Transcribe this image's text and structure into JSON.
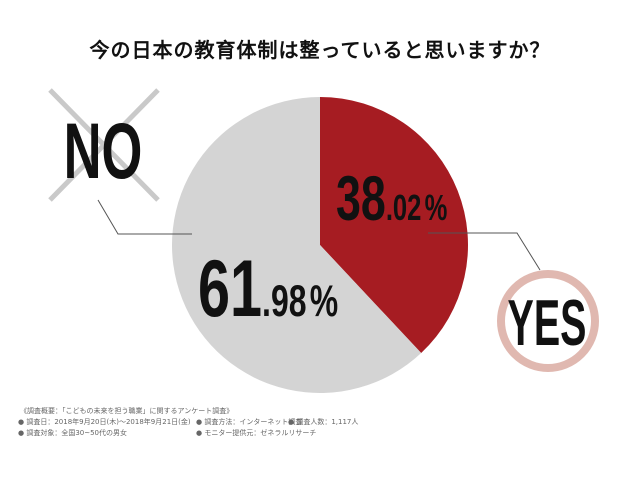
{
  "title": "今の日本の教育体制は整っていると思いますか？",
  "chart_data": {
    "type": "pie",
    "slices": [
      {
        "label": "YES",
        "value": 38.02,
        "int": "38",
        "dec": ".02",
        "unit": "%",
        "color": "#a61c22"
      },
      {
        "label": "NO",
        "value": 61.98,
        "int": "61",
        "dec": ".98",
        "unit": "%",
        "color": "#d4d4d4"
      }
    ]
  },
  "notes": {
    "heading": "《調査概要：「こどもの未来を担う職業」に関するアンケート調査》",
    "items": [
      "● 調査日：2018年9月20日(木)～2018年9月21日(金)",
      "● 調査方法：インターネット調査",
      "● 調査人数：1,117人",
      "● 調査対象：全国30~50代の男女",
      "● モニター提供元：ゼネラルリサーチ"
    ]
  }
}
